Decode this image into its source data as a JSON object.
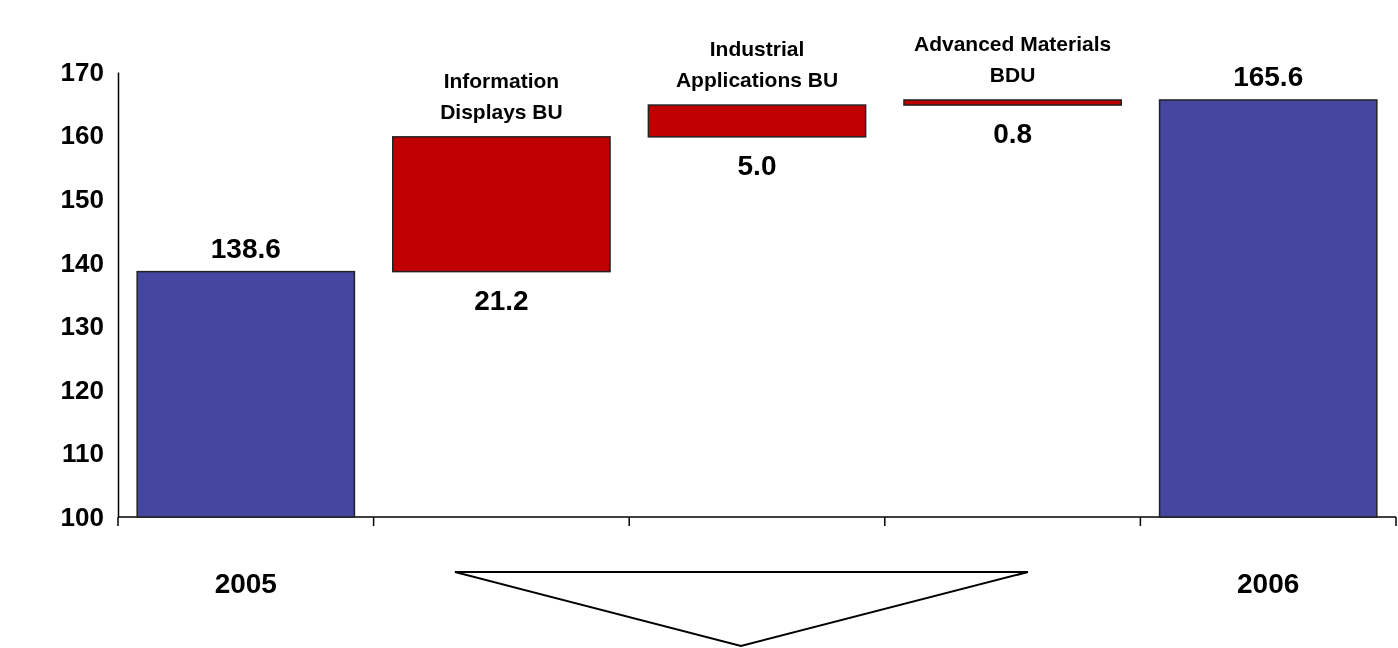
{
  "chart_data": {
    "type": "bar",
    "categories": [
      "2005",
      "Information Displays BU",
      "Industrial Applications BU",
      "Advanced Materials BDU",
      "2006"
    ],
    "values": [
      138.6,
      21.2,
      5.0,
      0.8,
      165.6
    ],
    "base": [
      null,
      138.6,
      159.8,
      164.8,
      null
    ],
    "colors": [
      "#4446a0",
      "#c00000",
      "#c00000",
      "#c00000",
      "#4446a0"
    ],
    "value_labels": [
      "138.6",
      "21.2",
      "5.0",
      "0.8",
      "165.6"
    ],
    "ylim": [
      100,
      170
    ],
    "yticks": [
      100,
      110,
      120,
      130,
      140,
      150,
      160,
      170
    ],
    "grid": false
  }
}
